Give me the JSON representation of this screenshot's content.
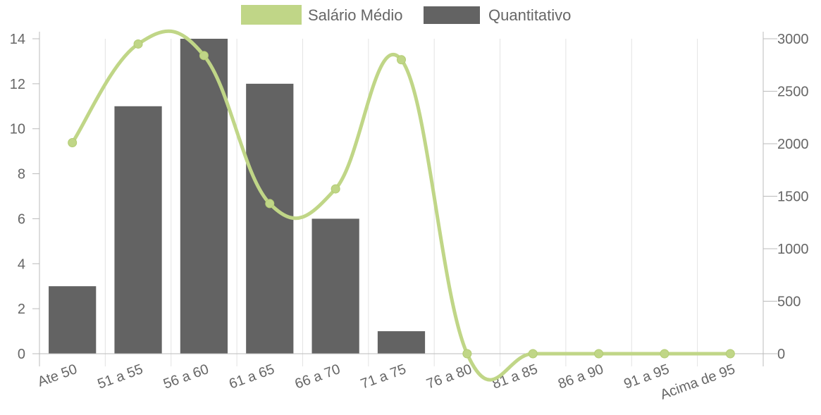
{
  "chart_data": {
    "type": "bar",
    "categories": [
      "Ate 50",
      "51 a 55",
      "56 a 60",
      "61 a 65",
      "66 a 70",
      "71 a 75",
      "76 a 80",
      "81 a 85",
      "86 a 90",
      "91 a 95",
      "Acima de 95"
    ],
    "series": [
      {
        "name": "Salário Médio",
        "type": "line",
        "axis": "right",
        "color": "#c0d687",
        "values": [
          2010,
          2950,
          2840,
          1430,
          1570,
          2800,
          0,
          0,
          0,
          0,
          0
        ]
      },
      {
        "name": "Quantitativo",
        "type": "bar",
        "axis": "left",
        "color": "#636363",
        "values": [
          3,
          11,
          14,
          12,
          6,
          1,
          0,
          0,
          0,
          0,
          0
        ]
      }
    ],
    "y_left": {
      "min": 0,
      "max": 14,
      "ticks": [
        "0",
        "2",
        "4",
        "6",
        "8",
        "10",
        "12",
        "14"
      ]
    },
    "y_right": {
      "min": 0,
      "max": 3000,
      "ticks": [
        "0",
        "500",
        "1000",
        "1500",
        "2000",
        "2500",
        "3000"
      ]
    },
    "legend_position": "top",
    "grid": "vertical"
  }
}
